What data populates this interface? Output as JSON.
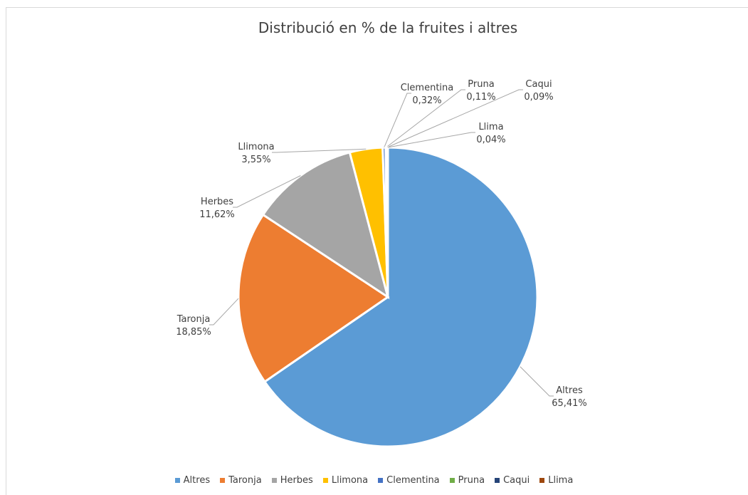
{
  "chart_data": {
    "type": "pie",
    "title": "Distribució en % de la fruites i altres",
    "categories": [
      "Altres",
      "Taronja",
      "Herbes",
      "Llimona",
      "Clementina",
      "Pruna",
      "Caqui",
      "Llima"
    ],
    "values": [
      65.41,
      18.85,
      11.62,
      3.55,
      0.32,
      0.11,
      0.09,
      0.04
    ],
    "value_labels": [
      "65,41%",
      "18,85%",
      "11,62%",
      "3,55%",
      "0,32%",
      "0,11%",
      "0,09%",
      "0,04%"
    ],
    "colors": [
      "#5b9bd5",
      "#ed7d31",
      "#a5a5a5",
      "#ffc000",
      "#4472c4",
      "#70ad47",
      "#264478",
      "#9e480e"
    ],
    "legend": "bottom"
  }
}
